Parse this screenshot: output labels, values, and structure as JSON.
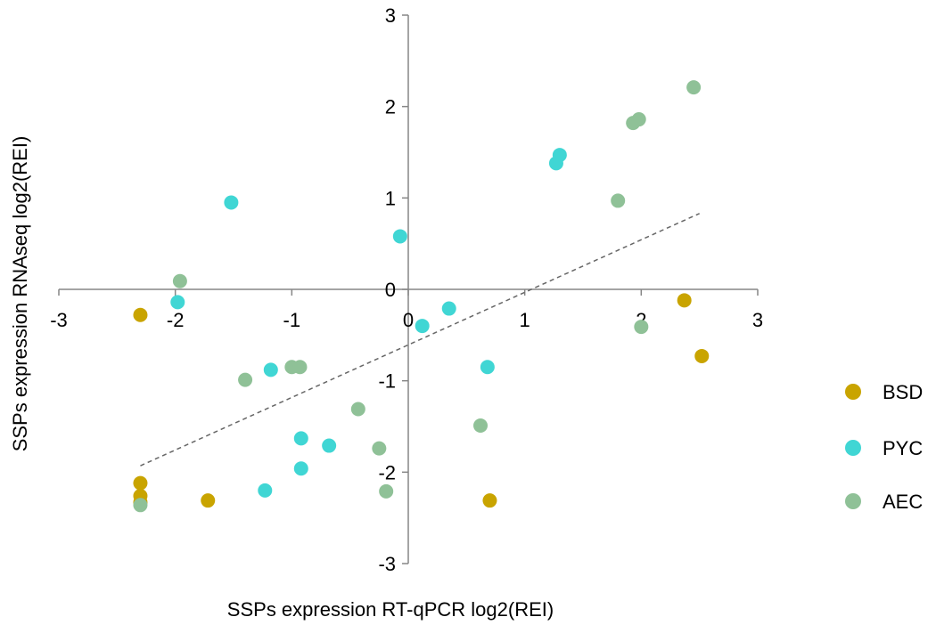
{
  "chart_data": {
    "type": "scatter",
    "title": "",
    "xlabel": "SSPs expression RT-qPCR log2(REI)",
    "ylabel": "SSPs expression RNAseq log2(REI)",
    "xlim": [
      -3,
      3
    ],
    "ylim": [
      -3,
      3
    ],
    "xticks": [
      "-3",
      "-2",
      "-1",
      "0",
      "1",
      "2",
      "3"
    ],
    "yticks": [
      "-3",
      "-2",
      "-1",
      "0",
      "1",
      "2",
      "3"
    ],
    "grid": false,
    "legend_position": "right",
    "series": [
      {
        "name": "BSD",
        "color": "#c9a400",
        "points": [
          {
            "x": -2.3,
            "y": -0.28
          },
          {
            "x": -2.3,
            "y": -2.12
          },
          {
            "x": -2.3,
            "y": -2.26
          },
          {
            "x": -2.3,
            "y": -2.33
          },
          {
            "x": -1.72,
            "y": -2.31
          },
          {
            "x": 0.7,
            "y": -2.31
          },
          {
            "x": 2.37,
            "y": -0.12
          },
          {
            "x": 2.52,
            "y": -0.73
          }
        ]
      },
      {
        "name": "PYC",
        "color": "#40d6d4",
        "points": [
          {
            "x": -1.98,
            "y": -0.14
          },
          {
            "x": -1.52,
            "y": 0.95
          },
          {
            "x": -1.18,
            "y": -0.88
          },
          {
            "x": -1.23,
            "y": -2.2
          },
          {
            "x": -0.92,
            "y": -1.63
          },
          {
            "x": -0.92,
            "y": -1.96
          },
          {
            "x": -0.68,
            "y": -1.71
          },
          {
            "x": -0.07,
            "y": 0.58
          },
          {
            "x": 0.12,
            "y": -0.4
          },
          {
            "x": 0.35,
            "y": -0.21
          },
          {
            "x": 0.68,
            "y": -0.85
          },
          {
            "x": 1.27,
            "y": 1.38
          },
          {
            "x": 1.3,
            "y": 1.47
          }
        ]
      },
      {
        "name": "AEC",
        "color": "#8fc197",
        "points": [
          {
            "x": -2.3,
            "y": -2.36
          },
          {
            "x": -1.96,
            "y": 0.09
          },
          {
            "x": -1.4,
            "y": -0.99
          },
          {
            "x": -1.0,
            "y": -0.85
          },
          {
            "x": -0.93,
            "y": -0.85
          },
          {
            "x": -0.43,
            "y": -1.31
          },
          {
            "x": -0.25,
            "y": -1.74
          },
          {
            "x": -0.19,
            "y": -2.21
          },
          {
            "x": 0.62,
            "y": -1.49
          },
          {
            "x": 1.8,
            "y": 0.97
          },
          {
            "x": 1.93,
            "y": 1.82
          },
          {
            "x": 1.98,
            "y": 1.86
          },
          {
            "x": 2.0,
            "y": -0.41
          },
          {
            "x": 2.45,
            "y": 2.21
          }
        ]
      }
    ],
    "trendline": {
      "style": "dashed",
      "color": "#666666",
      "from": {
        "x": -2.3,
        "y": -1.93
      },
      "to": {
        "x": 2.5,
        "y": 0.83
      }
    }
  }
}
